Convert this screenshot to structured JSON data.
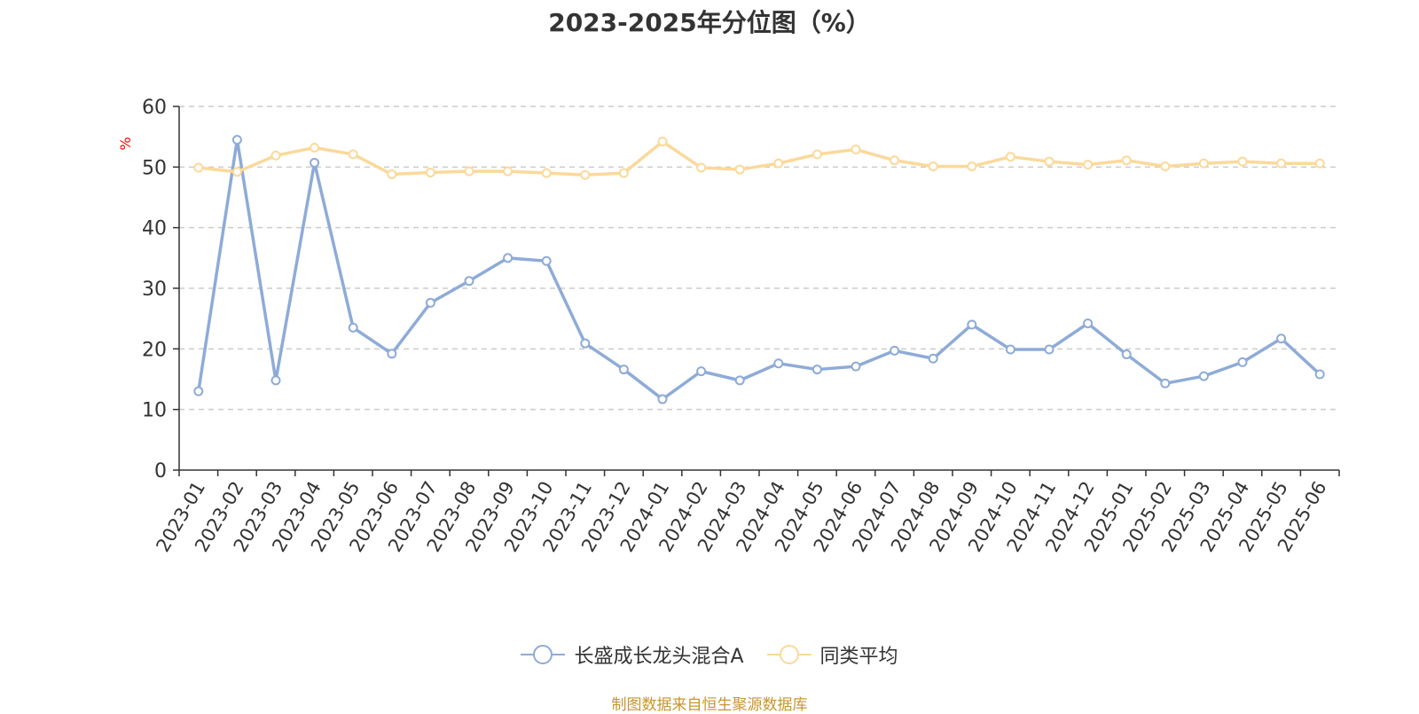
{
  "chart_data": {
    "type": "line",
    "title": "2023-2025年分位图（%）",
    "ylabel": "%",
    "ylim": [
      0,
      60
    ],
    "yticks": [
      0,
      10,
      20,
      30,
      40,
      50,
      60
    ],
    "grid": true,
    "legend_position": "bottom",
    "categories": [
      "2023-01",
      "2023-02",
      "2023-03",
      "2023-04",
      "2023-05",
      "2023-06",
      "2023-07",
      "2023-08",
      "2023-09",
      "2023-10",
      "2023-11",
      "2023-12",
      "2024-01",
      "2024-02",
      "2024-03",
      "2024-04",
      "2024-05",
      "2024-06",
      "2024-07",
      "2024-08",
      "2024-09",
      "2024-10",
      "2024-11",
      "2024-12",
      "2025-01",
      "2025-02",
      "2025-03",
      "2025-04",
      "2025-05",
      "2025-06"
    ],
    "series": [
      {
        "name": "长盛成长龙头混合A",
        "color": "#8eabd8",
        "values": [
          13.0,
          54.5,
          14.8,
          50.7,
          23.5,
          19.2,
          27.6,
          31.2,
          35.0,
          34.5,
          20.9,
          16.6,
          11.7,
          16.3,
          14.8,
          17.6,
          16.6,
          17.1,
          19.7,
          18.4,
          24.0,
          19.9,
          19.9,
          24.2,
          19.1,
          14.3,
          15.5,
          17.8,
          21.7,
          15.8
        ]
      },
      {
        "name": "同类平均",
        "color": "#fbd99a",
        "values": [
          49.9,
          49.2,
          51.9,
          53.2,
          52.1,
          48.8,
          49.1,
          49.3,
          49.3,
          49.0,
          48.7,
          49.0,
          54.2,
          49.9,
          49.6,
          50.6,
          52.1,
          52.9,
          51.1,
          50.1,
          50.1,
          51.7,
          50.9,
          50.4,
          51.1,
          50.1,
          50.6,
          50.9,
          50.6,
          50.6
        ]
      }
    ]
  },
  "footer": {
    "source": "制图数据来自恒生聚源数据库"
  }
}
